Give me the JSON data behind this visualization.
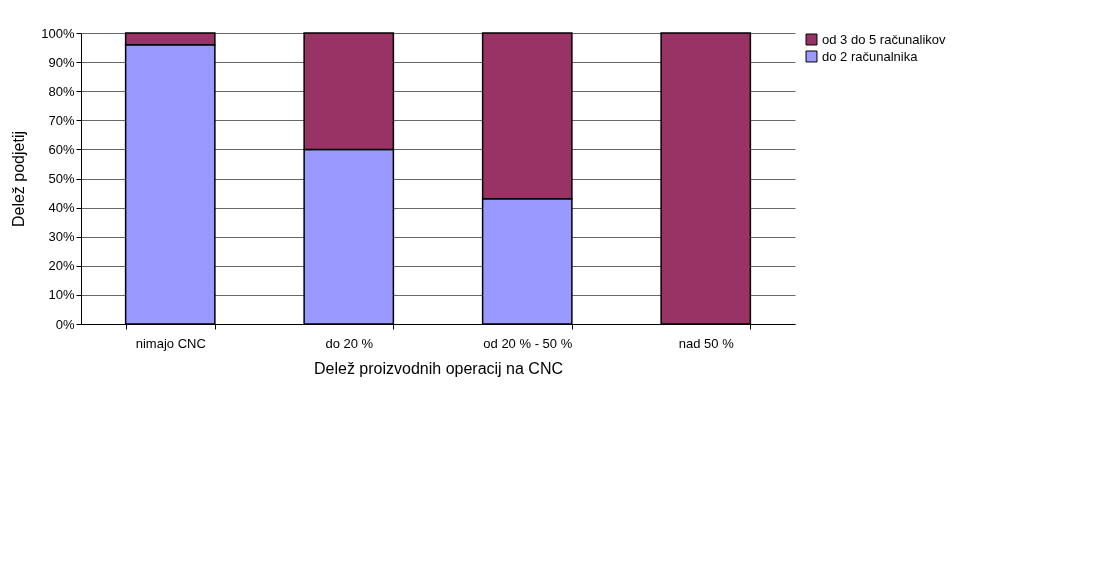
{
  "chart_data": {
    "type": "bar",
    "stacked": true,
    "xlabel": "Delež proizvodnih operacij na CNC",
    "ylabel": "Delež podjetij",
    "categories": [
      "nimajo CNC",
      "do 20 %",
      "od 20 % - 50 %",
      "nad 50 %"
    ],
    "series": [
      {
        "name": "do 2 računalnika",
        "color": "#9999ff",
        "values": [
          96,
          60,
          43,
          0
        ]
      },
      {
        "name": "od 3 do 5 računalikov",
        "color": "#993366",
        "values": [
          4,
          40,
          57,
          100
        ]
      }
    ],
    "ylim": [
      0,
      100
    ],
    "yticks": [
      {
        "value": 0,
        "label": "0%"
      },
      {
        "value": 10,
        "label": "10%"
      },
      {
        "value": 20,
        "label": "20%"
      },
      {
        "value": 30,
        "label": "30%"
      },
      {
        "value": 40,
        "label": "40%"
      },
      {
        "value": 50,
        "label": "50%"
      },
      {
        "value": 60,
        "label": "60%"
      },
      {
        "value": 70,
        "label": "70%"
      },
      {
        "value": 80,
        "label": "80%"
      },
      {
        "value": 90,
        "label": "90%"
      },
      {
        "value": 100,
        "label": "100%"
      }
    ],
    "grid": "y",
    "legend": "right"
  }
}
